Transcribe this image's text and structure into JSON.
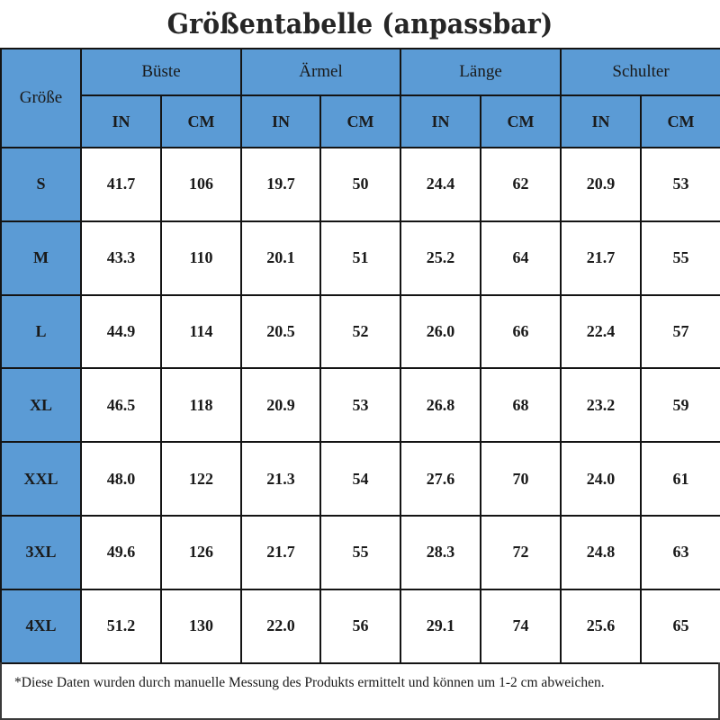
{
  "title": "Größentabelle (anpassbar)",
  "table": {
    "size_header": "Größe",
    "groups": [
      {
        "label": "Büste",
        "units": [
          "IN",
          "CM"
        ]
      },
      {
        "label": "Ärmel",
        "units": [
          "IN",
          "CM"
        ]
      },
      {
        "label": "Länge",
        "units": [
          "IN",
          "CM"
        ]
      },
      {
        "label": "Schulter",
        "units": [
          "IN",
          "CM"
        ]
      }
    ],
    "rows": [
      {
        "size": "S",
        "values": [
          "41.7",
          "106",
          "19.7",
          "50",
          "24.4",
          "62",
          "20.9",
          "53"
        ]
      },
      {
        "size": "M",
        "values": [
          "43.3",
          "110",
          "20.1",
          "51",
          "25.2",
          "64",
          "21.7",
          "55"
        ]
      },
      {
        "size": "L",
        "values": [
          "44.9",
          "114",
          "20.5",
          "52",
          "26.0",
          "66",
          "22.4",
          "57"
        ]
      },
      {
        "size": "XL",
        "values": [
          "46.5",
          "118",
          "20.9",
          "53",
          "26.8",
          "68",
          "23.2",
          "59"
        ]
      },
      {
        "size": "XXL",
        "values": [
          "48.0",
          "122",
          "21.3",
          "54",
          "27.6",
          "70",
          "24.0",
          "61"
        ]
      },
      {
        "size": "3XL",
        "values": [
          "49.6",
          "126",
          "21.7",
          "55",
          "28.3",
          "72",
          "24.8",
          "63"
        ]
      },
      {
        "size": "4XL",
        "values": [
          "51.2",
          "130",
          "22.0",
          "56",
          "29.1",
          "74",
          "25.6",
          "65"
        ]
      }
    ]
  },
  "footnote": "*Diese Daten wurden durch manuelle Messung des Produkts ermittelt und können um 1-2 cm abweichen.",
  "colors": {
    "header_bg": "#5b9bd5",
    "border": "#141414",
    "cell_bg": "#ffffff"
  }
}
